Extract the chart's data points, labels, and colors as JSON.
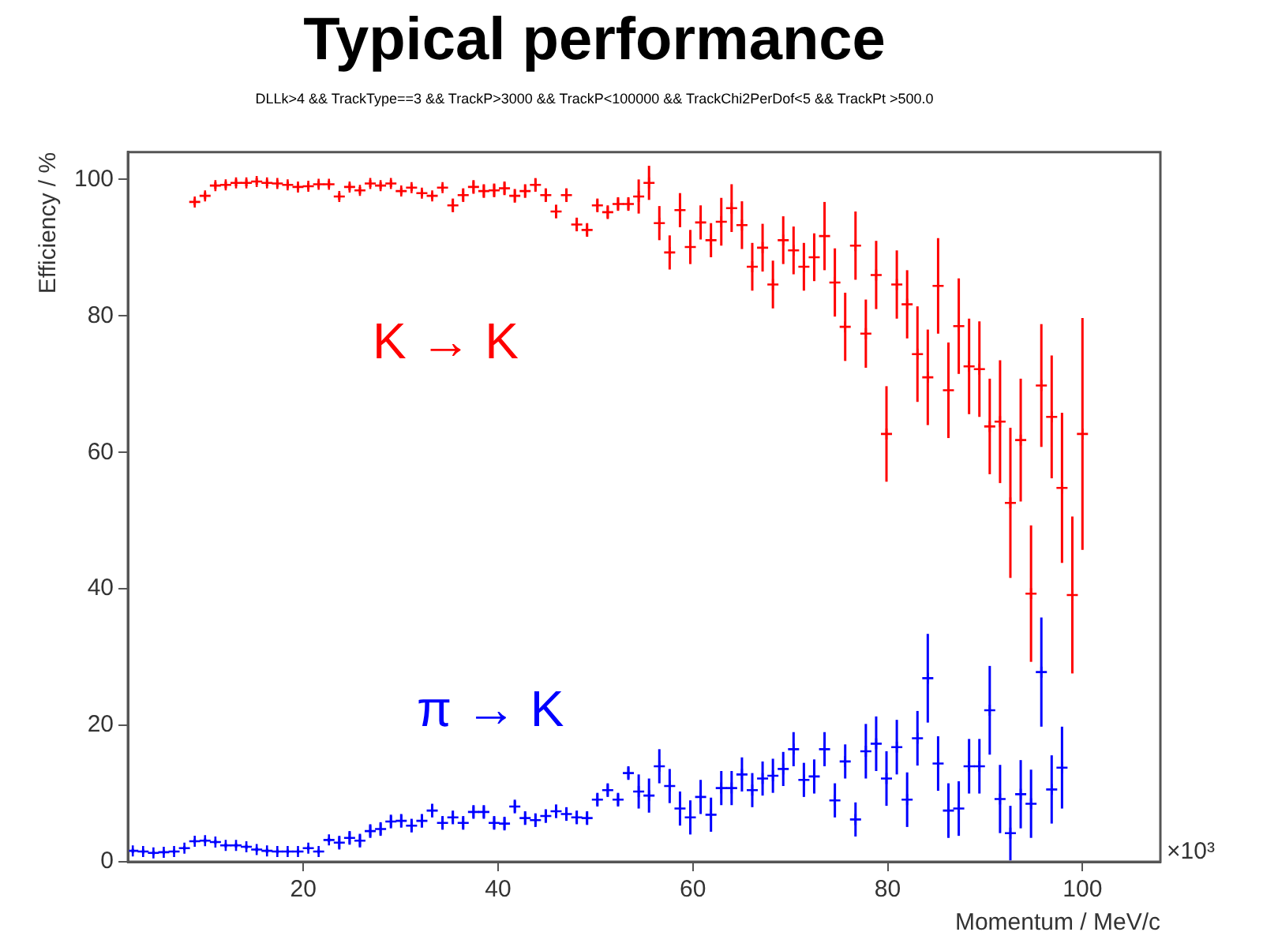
{
  "chart_data": {
    "type": "scatter",
    "title": "Typical performance",
    "subtitle": "DLLk>4 && TrackType==3 && TrackP>3000 && TrackP<100000 && TrackChi2PerDof<5 && TrackPt >500.0",
    "xlabel": "Momentum / MeV/c",
    "ylabel": "Efficiency / %",
    "annotations": [
      "×10³"
    ],
    "xlim": [
      2,
      108
    ],
    "xticks": [
      20,
      40,
      60,
      80,
      100
    ],
    "ylim": [
      0,
      104
    ],
    "yticks": [
      0,
      20,
      40,
      60,
      80,
      100
    ],
    "marker": "cross",
    "legend": false,
    "x": [
      2.5,
      3.56,
      4.62,
      5.68,
      6.74,
      7.8,
      8.86,
      9.92,
      10.98,
      12.04,
      13.1,
      14.16,
      15.22,
      16.28,
      17.34,
      18.4,
      19.46,
      20.52,
      21.58,
      22.64,
      23.7,
      24.76,
      25.82,
      26.88,
      27.94,
      29,
      30.06,
      31.12,
      32.18,
      33.24,
      34.3,
      35.36,
      36.42,
      37.48,
      38.54,
      39.6,
      40.66,
      41.72,
      42.78,
      43.84,
      44.9,
      45.96,
      47.02,
      48.08,
      49.14,
      50.2,
      51.26,
      52.32,
      53.38,
      54.44,
      55.5,
      56.56,
      57.62,
      58.68,
      59.74,
      60.8,
      61.86,
      62.92,
      63.98,
      65.04,
      66.1,
      67.16,
      68.22,
      69.28,
      70.34,
      71.4,
      72.46,
      73.52,
      74.58,
      75.64,
      76.7,
      77.76,
      78.82,
      79.88,
      80.94,
      82,
      83.06,
      84.12,
      85.18,
      86.24,
      87.3,
      88.36,
      89.42,
      90.48,
      91.54,
      92.6,
      93.66,
      94.72,
      95.78,
      96.84,
      97.9,
      98.96,
      100
    ],
    "series": [
      {
        "name": "K → K",
        "color": "#ff0000",
        "values": [
          null,
          null,
          null,
          null,
          null,
          null,
          96.7,
          97.6,
          99.1,
          99.2,
          99.5,
          99.5,
          99.7,
          99.5,
          99.4,
          99.2,
          98.9,
          99.0,
          99.3,
          99.3,
          97.5,
          98.9,
          98.4,
          99.4,
          99.1,
          99.4,
          98.3,
          98.8,
          98.0,
          97.6,
          98.8,
          96.2,
          97.7,
          98.9,
          98.3,
          98.4,
          98.7,
          97.6,
          98.3,
          99.2,
          97.7,
          95.3,
          97.7,
          93.4,
          92.6,
          96.2,
          95.2,
          96.4,
          96.4,
          97.5,
          99.5,
          93.6,
          89.3,
          95.5,
          90.1,
          93.7,
          91.1,
          93.8,
          95.8,
          93.3,
          87.2,
          90.0,
          84.6,
          91.1,
          89.6,
          87.2,
          88.6,
          91.7,
          84.9,
          78.4,
          90.3,
          77.4,
          86.0,
          62.7,
          84.6,
          81.7,
          74.4,
          71.0,
          84.4,
          69.1,
          78.5,
          72.6,
          72.2,
          63.8,
          64.5,
          52.6,
          61.8,
          39.3,
          69.8,
          65.2,
          54.8,
          39.1,
          62.7
        ],
        "errors": [
          null,
          null,
          null,
          null,
          null,
          null,
          0.5,
          0.5,
          0.5,
          0.5,
          0.5,
          0.5,
          0.5,
          0.5,
          0.5,
          0.5,
          0.5,
          0.5,
          0.5,
          0.5,
          0.5,
          0.5,
          0.5,
          0.5,
          0.5,
          0.5,
          0.5,
          0.5,
          0.5,
          0.5,
          0.5,
          1,
          1,
          1,
          1,
          1,
          1,
          1,
          1,
          1,
          1,
          1,
          1,
          1,
          1,
          1,
          1,
          1,
          1,
          2.5,
          2.5,
          2.5,
          2.5,
          2.5,
          2.5,
          2.5,
          2.5,
          3.5,
          3.5,
          3.5,
          3.5,
          3.5,
          3.5,
          3.5,
          3.5,
          3.5,
          3.5,
          5,
          5,
          5,
          5,
          5,
          5,
          7,
          5,
          5,
          7,
          7,
          7,
          7,
          7,
          7,
          7,
          7,
          9,
          11,
          9,
          10,
          9,
          9,
          11,
          11.5,
          17
        ]
      },
      {
        "name": "π → K",
        "color": "#0000ff",
        "values": [
          1.6,
          1.5,
          1.3,
          1.4,
          1.5,
          2.0,
          3.0,
          3.1,
          2.9,
          2.4,
          2.4,
          2.2,
          1.8,
          1.6,
          1.5,
          1.5,
          1.5,
          2.0,
          1.5,
          3.2,
          2.8,
          3.5,
          3.1,
          4.5,
          4.8,
          5.9,
          6.0,
          5.3,
          6.0,
          7.5,
          5.7,
          6.5,
          5.7,
          7.3,
          7.3,
          5.7,
          5.6,
          8.1,
          6.4,
          6.1,
          6.7,
          7.4,
          7.0,
          6.5,
          6.4,
          9.1,
          10.5,
          9.1,
          13.0,
          10.3,
          9.7,
          14.0,
          11.1,
          7.8,
          6.5,
          9.5,
          6.9,
          10.8,
          10.8,
          12.8,
          10.5,
          12.2,
          12.6,
          13.6,
          16.5,
          12.0,
          12.5,
          16.5,
          9.0,
          14.7,
          6.2,
          16.2,
          17.3,
          12.2,
          16.8,
          9.1,
          18.1,
          26.9,
          14.4,
          7.5,
          7.8,
          14.0,
          14.0,
          22.2,
          9.2,
          4.2,
          9.9,
          8.5,
          27.8,
          10.6,
          13.8,
          null,
          null
        ],
        "errors": [
          0.3,
          0.3,
          0.3,
          0.3,
          0.3,
          0.3,
          0.3,
          0.3,
          0.3,
          0.3,
          0.3,
          0.3,
          0.3,
          0.3,
          0.3,
          0.3,
          0.3,
          0.3,
          0.3,
          0.3,
          1,
          1,
          1,
          1,
          1,
          1,
          1,
          1,
          1,
          1,
          1,
          1,
          1,
          1,
          1,
          1,
          1,
          1,
          1,
          1,
          1,
          1,
          1,
          1,
          1,
          1,
          1,
          1,
          1,
          2.5,
          2.5,
          2.5,
          2.5,
          2.5,
          2.5,
          2.5,
          2.5,
          2.5,
          2.5,
          2.5,
          2.5,
          2.5,
          2.5,
          2.5,
          2.5,
          2.5,
          2.5,
          2.5,
          2.5,
          2.5,
          2.5,
          4,
          4,
          4,
          4,
          4,
          4,
          6.5,
          4,
          4,
          4,
          4,
          4,
          6.5,
          5,
          4,
          5,
          5,
          8,
          5,
          6,
          null,
          null
        ]
      }
    ]
  }
}
